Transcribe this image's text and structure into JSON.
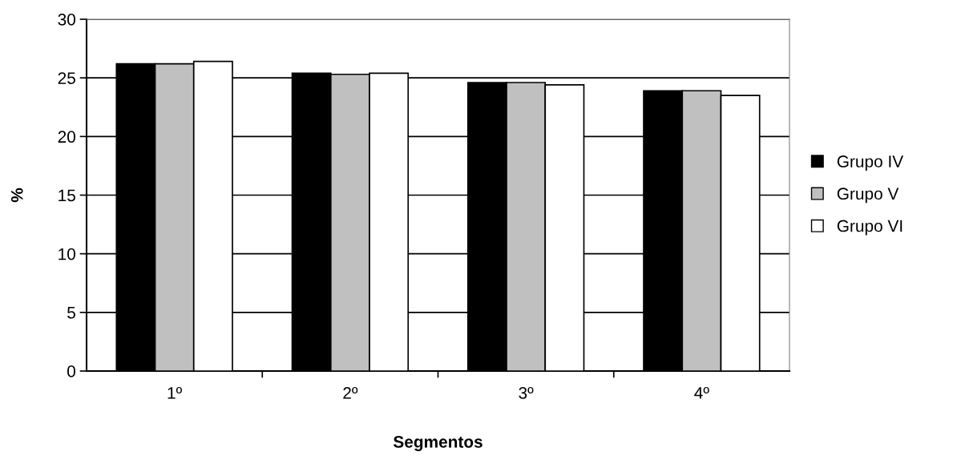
{
  "chart_data": {
    "type": "bar",
    "xlabel": "Segmentos",
    "ylabel": "%",
    "categories": [
      "1º",
      "2º",
      "3º",
      "4º"
    ],
    "series": [
      {
        "name": "Grupo IV",
        "color": "#000000",
        "values": [
          26.2,
          25.4,
          24.6,
          23.9
        ]
      },
      {
        "name": "Grupo V",
        "color": "#c0c0c0",
        "values": [
          26.2,
          25.3,
          24.6,
          23.9
        ]
      },
      {
        "name": "Grupo VI",
        "color": "#ffffff",
        "values": [
          26.4,
          25.4,
          24.4,
          23.5
        ]
      }
    ],
    "ylim": [
      0,
      30
    ],
    "yticks": [
      0,
      5,
      10,
      15,
      20,
      25,
      30
    ],
    "grid": "y",
    "legend": "right"
  }
}
